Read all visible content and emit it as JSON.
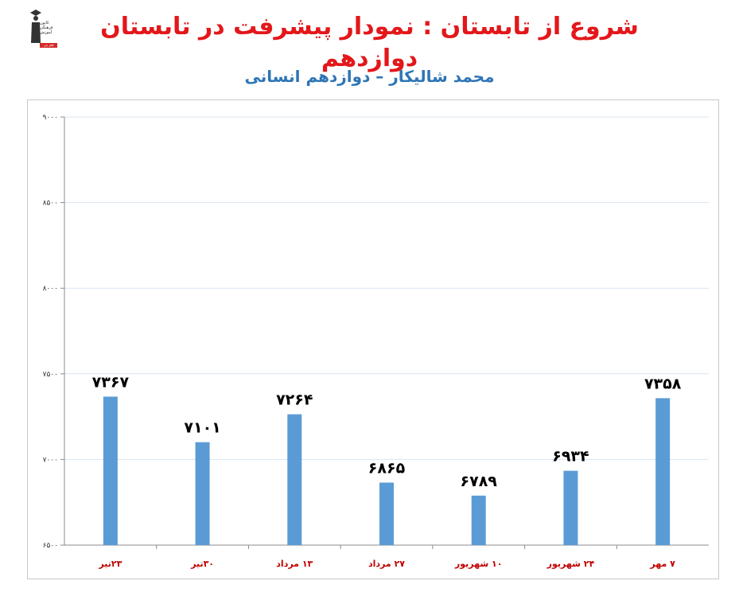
{
  "header": {
    "title": "شروع از تابستان : نمودار پیشرفت در تابستان دوازدهم",
    "subtitle": "محمد شالیکار – دوازدهم انسانی",
    "logo_lines": [
      "کانون",
      "فرهنگی",
      "آموزش"
    ],
    "logo_badge": "قلم چی"
  },
  "colors": {
    "title": "#e3171a",
    "subtitle": "#2e75b6",
    "bar": "#5b9bd5",
    "category_label": "#c00000",
    "gridline": "#d9e4f2"
  },
  "chart_data": {
    "type": "bar",
    "categories": [
      "۲۳تیر",
      "۳۰تیر",
      "۱۳ مرداد",
      "۲۷ مرداد",
      "۱۰ شهریور",
      "۲۴ شهریور",
      "۷ مهر"
    ],
    "values": [
      7367,
      7101,
      7264,
      6865,
      6789,
      6934,
      7358
    ],
    "data_labels": [
      "۷۳۶۷",
      "۷۱۰۱",
      "۷۲۶۴",
      "۶۸۶۵",
      "۶۷۸۹",
      "۶۹۳۴",
      "۷۳۵۸"
    ],
    "ylim": [
      6500,
      9000
    ],
    "yticks": [
      6500,
      7000,
      7500,
      8000,
      8500,
      9000
    ],
    "ytick_labels": [
      "۶۵۰۰",
      "۷۰۰۰",
      "۷۵۰۰",
      "۸۰۰۰",
      "۸۵۰۰",
      "۹۰۰۰"
    ],
    "grid": true,
    "legend": "none",
    "title": "",
    "xlabel": "",
    "ylabel": ""
  }
}
